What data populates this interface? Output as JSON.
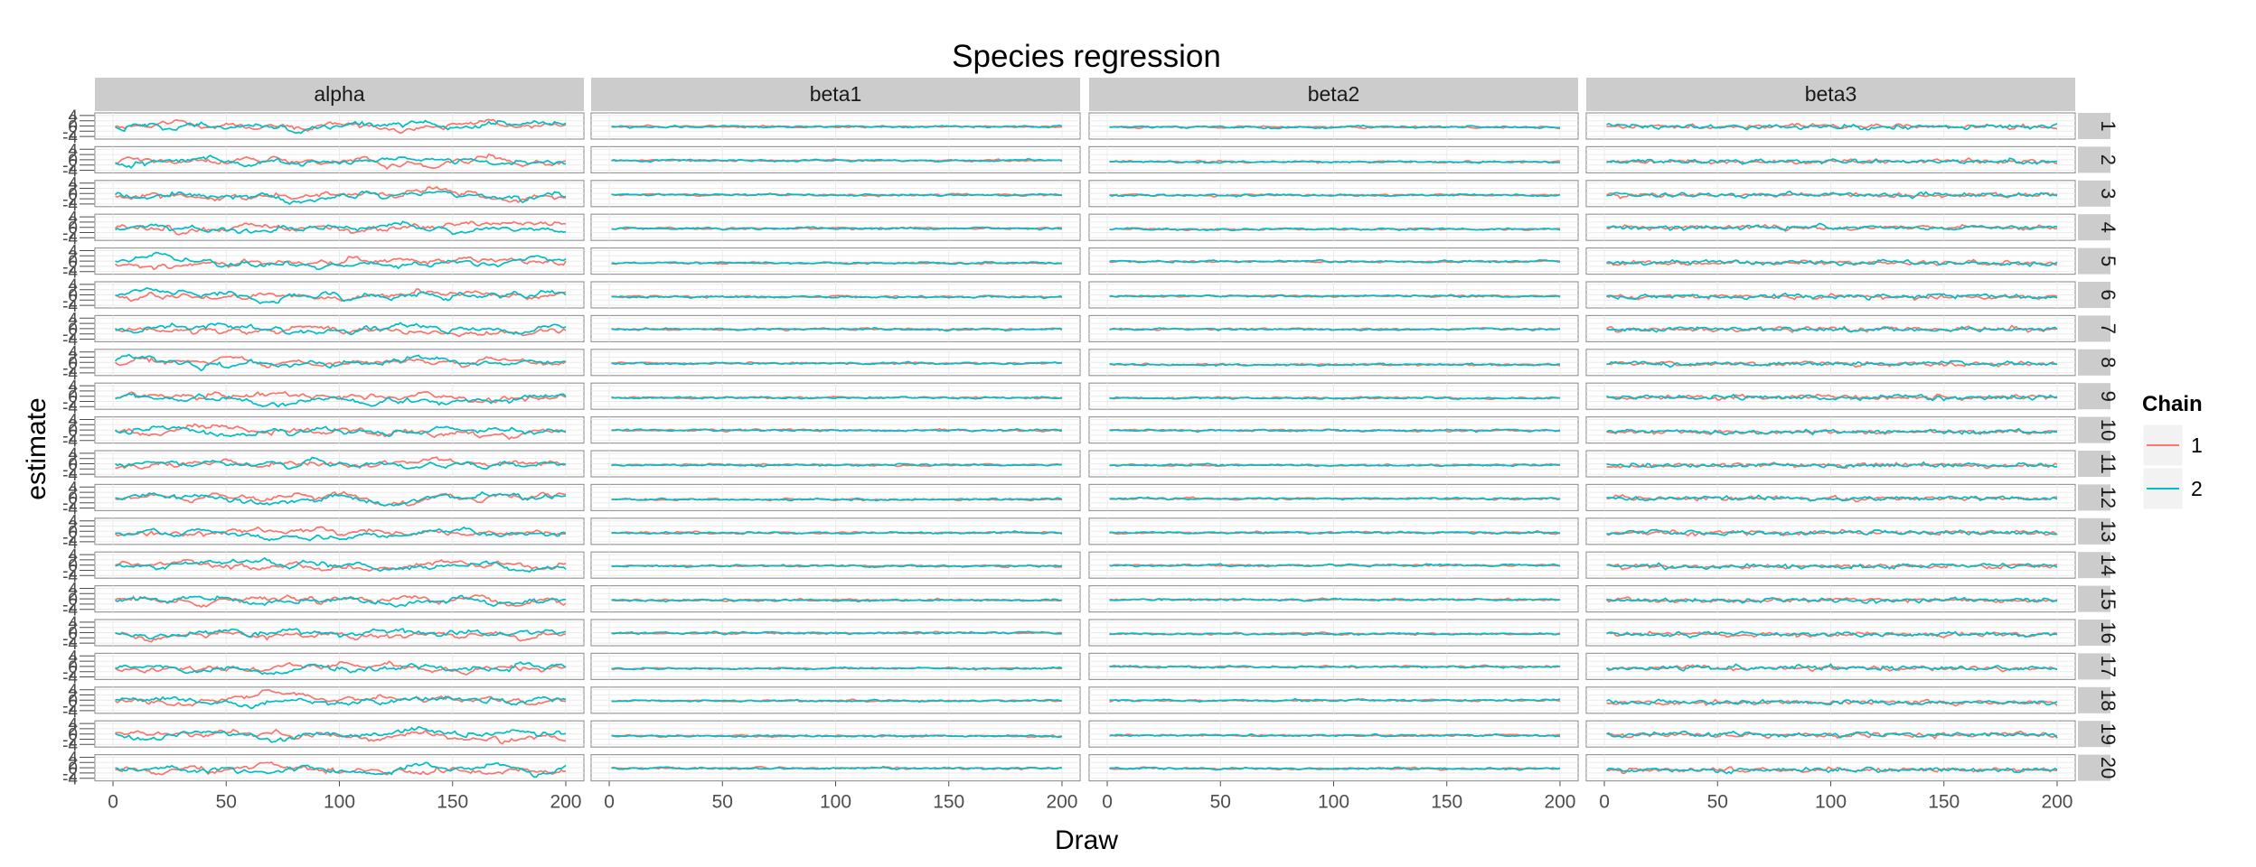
{
  "chart_data": {
    "type": "line",
    "title": "Species regression",
    "xlabel": "Draw",
    "ylabel": "estimate",
    "columns": [
      "alpha",
      "beta1",
      "beta2",
      "beta3"
    ],
    "rows": [
      "1",
      "2",
      "3",
      "4",
      "5",
      "6",
      "7",
      "8",
      "9",
      "10",
      "11",
      "12",
      "13",
      "14",
      "15",
      "16",
      "17",
      "18",
      "19",
      "20"
    ],
    "xlim": [
      -8,
      208
    ],
    "x_ticks": [
      "0",
      "50",
      "100",
      "150",
      "200"
    ],
    "ylim": [
      -5,
      5
    ],
    "y_ticks": [
      "-4",
      "-2",
      "0",
      "2",
      "4"
    ],
    "draws_per_chain": 200,
    "legend": {
      "title": "Chain",
      "position": "right",
      "items": [
        {
          "label": "1",
          "color": "#F8766D"
        },
        {
          "label": "2",
          "color": "#00BFC4"
        }
      ]
    },
    "grid": true,
    "panel_background": "#ffffff",
    "strip_background": "#cccccc",
    "gridline_color": "#ebebeb"
  }
}
